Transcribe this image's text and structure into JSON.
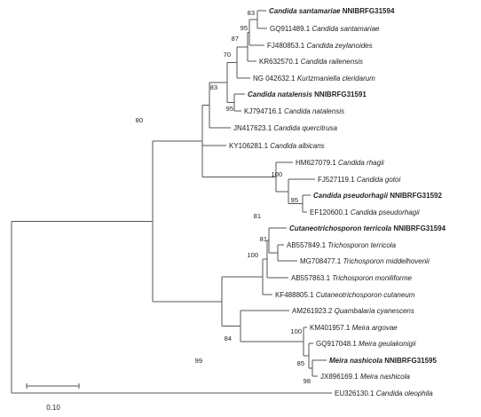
{
  "tree": {
    "leaves": [
      {
        "id": "L1",
        "acc": "",
        "species": "Candida santamariae",
        "suffix": "NNIBRFG31594",
        "bold": true
      },
      {
        "id": "L2",
        "acc": "GQ911489.1",
        "species": "Candida santamariae",
        "suffix": "",
        "bold": false
      },
      {
        "id": "L3",
        "acc": "FJ480853.1",
        "species": "Candida zeylanoides",
        "suffix": "",
        "bold": false
      },
      {
        "id": "L4",
        "acc": "KR632570.1",
        "species": "Candida railenensis",
        "suffix": "",
        "bold": false
      },
      {
        "id": "L5",
        "acc": "NG 042632.1",
        "species": "Kurtzmaniella cleridarum",
        "suffix": "",
        "bold": false
      },
      {
        "id": "L6",
        "acc": "",
        "species": "Candida natalensis",
        "suffix": "NNIBRFG31591",
        "bold": true
      },
      {
        "id": "L7",
        "acc": "KJ794716.1",
        "species": "Candida natalensis",
        "suffix": "",
        "bold": false
      },
      {
        "id": "L8",
        "acc": "JN417623.1",
        "species": "Candida quercitrusa",
        "suffix": "",
        "bold": false
      },
      {
        "id": "L9",
        "acc": "KY106281.1",
        "species": "Candida albicans",
        "suffix": "",
        "bold": false
      },
      {
        "id": "L10",
        "acc": "HM627079.1",
        "species": "Candida rhagii",
        "suffix": "",
        "bold": false
      },
      {
        "id": "L11",
        "acc": "FJ527119.1",
        "species": "Candida gotoi",
        "suffix": "",
        "bold": false
      },
      {
        "id": "L12",
        "acc": "",
        "species": "Candida pseudorhagii",
        "suffix": "NNIBRFG31592",
        "bold": true
      },
      {
        "id": "L13",
        "acc": "EF120600.1",
        "species": "Candida pseudorhagii",
        "suffix": "",
        "bold": false
      },
      {
        "id": "L14",
        "acc": "",
        "species": "Cutaneotrichosporon terricola",
        "suffix": "NNIBRFG31594",
        "bold": true
      },
      {
        "id": "L15",
        "acc": "AB557849.1",
        "species": "Trichosporon terricola",
        "suffix": "",
        "bold": false
      },
      {
        "id": "L16",
        "acc": "MG708477.1",
        "species": "Trichosporon middelhovenii",
        "suffix": "",
        "bold": false
      },
      {
        "id": "L17",
        "acc": "AB557863.1",
        "species": "Trichosporon moniliforme",
        "suffix": "",
        "bold": false
      },
      {
        "id": "L18",
        "acc": "KF488805.1",
        "species": "Cutaneotrichosporon cutaneum",
        "suffix": "",
        "bold": false
      },
      {
        "id": "L19",
        "acc": "AM261923.2",
        "species": "Quambalaria cyanescens",
        "suffix": "",
        "bold": false
      },
      {
        "id": "L20",
        "acc": "KM401957.1",
        "species": "Meira argovae",
        "suffix": "",
        "bold": false
      },
      {
        "id": "L21",
        "acc": "GQ917048.1",
        "species": "Meira geulakonigii",
        "suffix": "",
        "bold": false
      },
      {
        "id": "L22",
        "acc": "",
        "species": "Meira nashicola",
        "suffix": "NNIBRFG31595",
        "bold": true
      },
      {
        "id": "L23",
        "acc": "JX896169.1",
        "species": "Meira nashicola",
        "suffix": "",
        "bold": false
      },
      {
        "id": "L24",
        "acc": "EU326130.1",
        "species": "Candida oleophila",
        "suffix": "",
        "bold": false
      }
    ],
    "bootstrap": [
      {
        "node": "N1",
        "value": "83"
      },
      {
        "node": "N2",
        "value": "95"
      },
      {
        "node": "N3",
        "value": "87"
      },
      {
        "node": "N4",
        "value": "70"
      },
      {
        "node": "N5",
        "value": "83"
      },
      {
        "node": "N6",
        "value": "95"
      },
      {
        "node": "N7",
        "value": "80"
      },
      {
        "node": "N8",
        "value": "100"
      },
      {
        "node": "N9",
        "value": "95"
      },
      {
        "node": "N10",
        "value": "81"
      },
      {
        "node": "N11",
        "value": "81"
      },
      {
        "node": "N12",
        "value": "100"
      },
      {
        "node": "N13",
        "value": "99"
      },
      {
        "node": "N14",
        "value": "84"
      },
      {
        "node": "N15",
        "value": "100"
      },
      {
        "node": "N16",
        "value": "85"
      },
      {
        "node": "N17",
        "value": "98"
      }
    ],
    "scale_bar": {
      "label": "0.10"
    },
    "colors": {
      "branch": "#555555",
      "text": "#222222"
    }
  }
}
